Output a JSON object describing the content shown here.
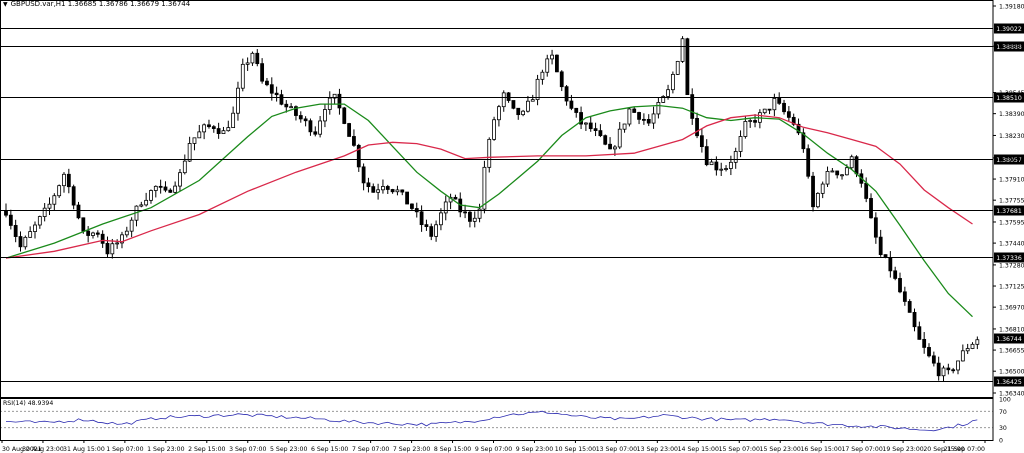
{
  "symbol_header": {
    "arrow_icon": "triangle-down-icon",
    "text": "GBPUSD.var,H1  1.36685 1.36786 1.36679 1.36744"
  },
  "rsi_header": {
    "text": "RSI(14) 48.9394"
  },
  "colors": {
    "candle": "#000000",
    "ma_fast": "#1a8a1a",
    "ma_slow": "#d9284a",
    "rsi_line": "#2b2bb0",
    "hline": "#000000",
    "level_dash": "#8a8a8a"
  },
  "chart_data": [
    {
      "type": "candlestick",
      "title": "GBPUSD.var,H1",
      "ylim": [
        1.3634,
        1.3918
      ],
      "price_ticks": [
        "1.39180",
        "1.38885",
        "1.38545",
        "1.38390",
        "1.38230",
        "1.38065",
        "1.37910",
        "1.37755",
        "1.37595",
        "1.37440",
        "1.37280",
        "1.37125",
        "1.36970",
        "1.36810",
        "1.36655",
        "1.36500",
        "1.36340"
      ],
      "hline_levels": [
        {
          "value": 1.39022,
          "label": "1.39022"
        },
        {
          "value": 1.38888,
          "label": "1.38888"
        },
        {
          "value": 1.3851,
          "label": "1.38510"
        },
        {
          "value": 1.38057,
          "label": "1.38057"
        },
        {
          "value": 1.37681,
          "label": "1.37681"
        },
        {
          "value": 1.37336,
          "label": "1.37336"
        },
        {
          "value": 1.36425,
          "label": "1.36425"
        }
      ],
      "current_price": {
        "value": 1.36744,
        "label": "1.36744"
      },
      "x_ticks": [
        "30 Aug 2021",
        "30 Aug 23:00",
        "31 Aug 15:00",
        "1 Sep 07:00",
        "1 Sep 23:00",
        "2 Sep 15:00",
        "3 Sep 07:00",
        "5 Sep 23:00",
        "6 Sep 15:00",
        "7 Sep 07:00",
        "7 Sep 23:00",
        "8 Sep 15:00",
        "9 Sep 07:00",
        "9 Sep 23:00",
        "10 Sep 15:00",
        "13 Sep 07:00",
        "13 Sep 23:00",
        "14 Sep 15:00",
        "15 Sep 07:00",
        "15 Sep 23:00",
        "16 Sep 15:00",
        "17 Sep 07:00",
        "19 Sep 23:00",
        "20 Sep 15:00",
        "21 Sep 07:00"
      ],
      "close_path": [
        [
          0,
          1.3768
        ],
        [
          3,
          1.3741
        ],
        [
          6,
          1.3756
        ],
        [
          9,
          1.3772
        ],
        [
          12,
          1.3795
        ],
        [
          14,
          1.3775
        ],
        [
          16,
          1.375
        ],
        [
          19,
          1.3752
        ],
        [
          21,
          1.3738
        ],
        [
          24,
          1.3747
        ],
        [
          26,
          1.3762
        ],
        [
          28,
          1.3775
        ],
        [
          31,
          1.3785
        ],
        [
          33,
          1.378
        ],
        [
          36,
          1.3794
        ],
        [
          38,
          1.3818
        ],
        [
          41,
          1.3828
        ],
        [
          43,
          1.383
        ],
        [
          45,
          1.3825
        ],
        [
          47,
          1.3838
        ],
        [
          49,
          1.3872
        ],
        [
          51,
          1.3884
        ],
        [
          53,
          1.3862
        ],
        [
          56,
          1.3852
        ],
        [
          58,
          1.3844
        ],
        [
          60,
          1.3838
        ],
        [
          62,
          1.3832
        ],
        [
          64,
          1.3826
        ],
        [
          66,
          1.3845
        ],
        [
          68,
          1.385
        ],
        [
          70,
          1.3835
        ],
        [
          72,
          1.3815
        ],
        [
          74,
          1.379
        ],
        [
          76,
          1.3782
        ],
        [
          78,
          1.3788
        ],
        [
          81,
          1.3782
        ],
        [
          84,
          1.377
        ],
        [
          86,
          1.3758
        ],
        [
          88,
          1.375
        ],
        [
          90,
          1.3765
        ],
        [
          92,
          1.3778
        ],
        [
          94,
          1.3768
        ],
        [
          96,
          1.3762
        ],
        [
          98,
          1.3768
        ],
        [
          99,
          1.38
        ],
        [
          101,
          1.3835
        ],
        [
          103,
          1.3852
        ],
        [
          105,
          1.384
        ],
        [
          107,
          1.3838
        ],
        [
          109,
          1.3852
        ],
        [
          111,
          1.3872
        ],
        [
          113,
          1.388
        ],
        [
          115,
          1.3858
        ],
        [
          117,
          1.3842
        ],
        [
          119,
          1.3832
        ],
        [
          121,
          1.3828
        ],
        [
          123,
          1.382
        ],
        [
          125,
          1.381
        ],
        [
          127,
          1.3825
        ],
        [
          129,
          1.3842
        ],
        [
          131,
          1.3838
        ],
        [
          133,
          1.3832
        ],
        [
          135,
          1.3844
        ],
        [
          137,
          1.3855
        ],
        [
          139,
          1.388
        ],
        [
          140,
          1.3895
        ],
        [
          141,
          1.3852
        ],
        [
          143,
          1.3826
        ],
        [
          145,
          1.3805
        ],
        [
          147,
          1.38
        ],
        [
          149,
          1.38
        ],
        [
          151,
          1.381
        ],
        [
          153,
          1.383
        ],
        [
          155,
          1.3835
        ],
        [
          157,
          1.384
        ],
        [
          159,
          1.3848
        ],
        [
          161,
          1.384
        ],
        [
          163,
          1.3832
        ],
        [
          165,
          1.3815
        ],
        [
          166,
          1.379
        ],
        [
          167,
          1.377
        ],
        [
          169,
          1.379
        ],
        [
          171,
          1.3798
        ],
        [
          173,
          1.3795
        ],
        [
          175,
          1.3805
        ],
        [
          177,
          1.379
        ],
        [
          179,
          1.376
        ],
        [
          181,
          1.3735
        ],
        [
          183,
          1.3725
        ],
        [
          185,
          1.3708
        ],
        [
          187,
          1.369
        ],
        [
          189,
          1.3672
        ],
        [
          191,
          1.366
        ],
        [
          193,
          1.365
        ],
        [
          195,
          1.3648
        ],
        [
          197,
          1.3658
        ],
        [
          199,
          1.3668
        ],
        [
          201,
          1.3674
        ]
      ],
      "series": [
        {
          "style": "green",
          "points": [
            [
              0,
              1.3733
            ],
            [
              10,
              1.3744
            ],
            [
              20,
              1.3758
            ],
            [
              30,
              1.377
            ],
            [
              40,
              1.379
            ],
            [
              50,
              1.3822
            ],
            [
              55,
              1.3837
            ],
            [
              60,
              1.3843
            ],
            [
              65,
              1.3846
            ],
            [
              70,
              1.3846
            ],
            [
              75,
              1.3834
            ],
            [
              80,
              1.3815
            ],
            [
              85,
              1.3796
            ],
            [
              90,
              1.3782
            ],
            [
              94,
              1.3772
            ],
            [
              98,
              1.377
            ],
            [
              102,
              1.378
            ],
            [
              106,
              1.3792
            ],
            [
              110,
              1.3804
            ],
            [
              115,
              1.3823
            ],
            [
              120,
              1.3836
            ],
            [
              125,
              1.3841
            ],
            [
              130,
              1.3844
            ],
            [
              135,
              1.3845
            ],
            [
              140,
              1.3843
            ],
            [
              145,
              1.3836
            ],
            [
              150,
              1.3834
            ],
            [
              155,
              1.3836
            ],
            [
              160,
              1.3835
            ],
            [
              165,
              1.3824
            ],
            [
              170,
              1.381
            ],
            [
              175,
              1.3798
            ],
            [
              180,
              1.3782
            ],
            [
              185,
              1.3757
            ],
            [
              190,
              1.3731
            ],
            [
              195,
              1.3707
            ],
            [
              200,
              1.369
            ]
          ]
        },
        {
          "style": "red",
          "points": [
            [
              0,
              1.3733
            ],
            [
              10,
              1.3738
            ],
            [
              20,
              1.3746
            ],
            [
              24,
              1.3745
            ],
            [
              30,
              1.3753
            ],
            [
              40,
              1.3765
            ],
            [
              50,
              1.3782
            ],
            [
              60,
              1.3796
            ],
            [
              70,
              1.3808
            ],
            [
              75,
              1.3816
            ],
            [
              80,
              1.3818
            ],
            [
              85,
              1.3817
            ],
            [
              90,
              1.3813
            ],
            [
              95,
              1.3806
            ],
            [
              100,
              1.3807
            ],
            [
              110,
              1.3808
            ],
            [
              120,
              1.3808
            ],
            [
              130,
              1.381
            ],
            [
              135,
              1.3815
            ],
            [
              140,
              1.382
            ],
            [
              145,
              1.383
            ],
            [
              150,
              1.3836
            ],
            [
              155,
              1.3838
            ],
            [
              160,
              1.3836
            ],
            [
              165,
              1.3829
            ],
            [
              170,
              1.3825
            ],
            [
              175,
              1.382
            ],
            [
              180,
              1.3815
            ],
            [
              185,
              1.3802
            ],
            [
              190,
              1.3783
            ],
            [
              195,
              1.377
            ],
            [
              200,
              1.3758
            ]
          ]
        }
      ]
    },
    {
      "type": "line",
      "title": "RSI(14) 48.9394",
      "ylim": [
        0,
        100
      ],
      "y_ticks": [
        "100",
        "70",
        "30",
        "0"
      ],
      "levels": [
        70,
        30
      ],
      "series": [
        {
          "points": [
            [
              0,
              45
            ],
            [
              8,
              42
            ],
            [
              16,
              50
            ],
            [
              24,
              38
            ],
            [
              32,
              55
            ],
            [
              40,
              58
            ],
            [
              48,
              62
            ],
            [
              56,
              57
            ],
            [
              64,
              52
            ],
            [
              72,
              44
            ],
            [
              80,
              40
            ],
            [
              88,
              38
            ],
            [
              96,
              45
            ],
            [
              104,
              62
            ],
            [
              112,
              68
            ],
            [
              120,
              55
            ],
            [
              128,
              50
            ],
            [
              136,
              60
            ],
            [
              144,
              52
            ],
            [
              152,
              48
            ],
            [
              160,
              52
            ],
            [
              168,
              40
            ],
            [
              176,
              35
            ],
            [
              184,
              30
            ],
            [
              190,
              25
            ],
            [
              194,
              28
            ],
            [
              198,
              38
            ],
            [
              201,
              48.9394
            ]
          ]
        }
      ]
    }
  ]
}
